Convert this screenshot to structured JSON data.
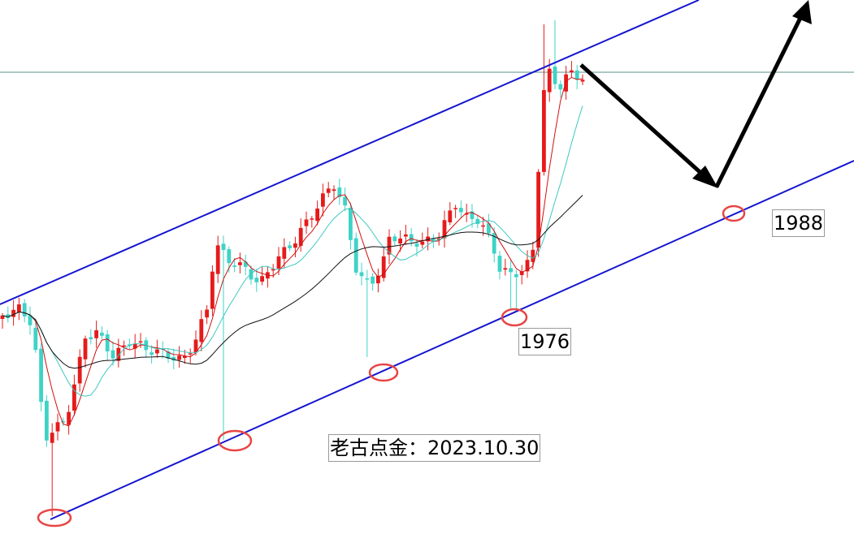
{
  "labels": [
    "1976",
    "1988"
  ],
  "credit": "老古点金：2023.10.30"
}
